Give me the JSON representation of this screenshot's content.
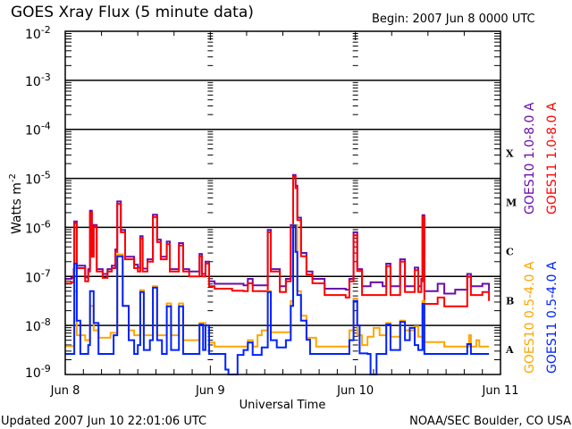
{
  "chart_data": {
    "type": "line",
    "title": "GOES Xray Flux (5 minute data)",
    "begin_label": "Begin:  2007 Jun 8 0000 UTC",
    "xlabel": "Universal Time",
    "ylabel": "Watts m",
    "ylabel_sup": "-2",
    "y_scale": "log",
    "ylim_log10": [
      -9,
      -2
    ],
    "xlim_hours": [
      0,
      72
    ],
    "x_ticks": [
      {
        "hour": 0,
        "label": "Jun 8"
      },
      {
        "hour": 24,
        "label": "Jun 9"
      },
      {
        "hour": 48,
        "label": "Jun 10"
      },
      {
        "hour": 72,
        "label": "Jun 11"
      }
    ],
    "y_ticks": [
      {
        "exp": -2,
        "base": "10",
        "sup": "-2"
      },
      {
        "exp": -3,
        "base": "10",
        "sup": "-3"
      },
      {
        "exp": -4,
        "base": "10",
        "sup": "-4"
      },
      {
        "exp": -5,
        "base": "10",
        "sup": "-5"
      },
      {
        "exp": -6,
        "base": "10",
        "sup": "-6"
      },
      {
        "exp": -7,
        "base": "10",
        "sup": "-7"
      },
      {
        "exp": -8,
        "base": "10",
        "sup": "-8"
      },
      {
        "exp": -9,
        "base": "10",
        "sup": "-9"
      }
    ],
    "flare_classes": [
      {
        "label": "X",
        "exp": -4
      },
      {
        "label": "M",
        "exp": -5
      },
      {
        "label": "C",
        "exp": -6
      },
      {
        "label": "B",
        "exp": -7
      },
      {
        "label": "A",
        "exp": -8
      }
    ],
    "gridlines_log10": [
      -3,
      -4,
      -5,
      -6,
      -7,
      -8
    ],
    "series": [
      {
        "name": "GOES10 1.0-8.0 A",
        "color": "#6a0dad",
        "points_hour_log10flux": [
          [
            0,
            -7.05
          ],
          [
            1.0,
            -7.03
          ],
          [
            1.4,
            -6.85
          ],
          [
            1.5,
            -5.88
          ],
          [
            1.9,
            -6.78
          ],
          [
            3.3,
            -7.02
          ],
          [
            3.8,
            -6.85
          ],
          [
            4.1,
            -5.66
          ],
          [
            4.4,
            -6.55
          ],
          [
            4.7,
            -5.95
          ],
          [
            5.2,
            -6.85
          ],
          [
            6.2,
            -6.95
          ],
          [
            7.0,
            -6.85
          ],
          [
            7.7,
            -6.78
          ],
          [
            8.3,
            -6.45
          ],
          [
            8.6,
            -5.47
          ],
          [
            9.2,
            -6.05
          ],
          [
            9.9,
            -6.6
          ],
          [
            11.4,
            -6.76
          ],
          [
            12.0,
            -6.82
          ],
          [
            12.4,
            -6.18
          ],
          [
            12.8,
            -6.84
          ],
          [
            13.6,
            -6.65
          ],
          [
            14.5,
            -5.74
          ],
          [
            15.2,
            -6.25
          ],
          [
            15.8,
            -6.6
          ],
          [
            16.8,
            -6.29
          ],
          [
            17.3,
            -6.85
          ],
          [
            18.8,
            -6.32
          ],
          [
            19.5,
            -6.85
          ],
          [
            20.5,
            -6.9
          ],
          [
            22.2,
            -6.54
          ],
          [
            22.6,
            -6.95
          ],
          [
            23.2,
            -6.7
          ],
          [
            23.8,
            -7.1
          ],
          [
            24.7,
            -7.15
          ],
          [
            27.6,
            -7.15
          ],
          [
            29.5,
            -7.18
          ],
          [
            30.2,
            -7.05
          ],
          [
            31,
            -7.18
          ],
          [
            33.0,
            -7.18
          ],
          [
            33.5,
            -6.05
          ],
          [
            34.0,
            -6.85
          ],
          [
            35.5,
            -7.2
          ],
          [
            36.5,
            -7.05
          ],
          [
            37.3,
            -5.95
          ],
          [
            37.7,
            -4.93
          ],
          [
            38.1,
            -5.15
          ],
          [
            38.4,
            -5.8
          ],
          [
            39.0,
            -6.52
          ],
          [
            39.9,
            -6.9
          ],
          [
            40.9,
            -7.05
          ],
          [
            42.9,
            -7.25
          ],
          [
            46.4,
            -7.27
          ],
          [
            47.0,
            -7.05
          ],
          [
            47.7,
            -6.1
          ],
          [
            48.3,
            -6.85
          ],
          [
            49.1,
            -7.2
          ],
          [
            50.5,
            -7.12
          ],
          [
            52.5,
            -7.2
          ],
          [
            53.1,
            -6.74
          ],
          [
            53.8,
            -7.2
          ],
          [
            55.4,
            -6.65
          ],
          [
            56.2,
            -7.2
          ],
          [
            57.8,
            -6.82
          ],
          [
            58.4,
            -7.2
          ],
          [
            58.9,
            -7.05
          ],
          [
            59.1,
            -5.75
          ],
          [
            59.4,
            -7.3
          ],
          [
            61.6,
            -7.15
          ],
          [
            62.7,
            -7.35
          ],
          [
            64.5,
            -7.27
          ],
          [
            65.6,
            -7.27
          ],
          [
            66.5,
            -6.95
          ],
          [
            67.1,
            -7.2
          ],
          [
            69.0,
            -7.15
          ],
          [
            70.1,
            -7.3
          ]
        ]
      },
      {
        "name": "GOES11 1.0-8.0 A",
        "color": "#ff0000",
        "points_hour_log10flux": [
          [
            0,
            -7.14
          ],
          [
            1.0,
            -7.12
          ],
          [
            1.4,
            -6.9
          ],
          [
            1.5,
            -5.92
          ],
          [
            1.9,
            -6.83
          ],
          [
            3.3,
            -7.1
          ],
          [
            3.8,
            -6.9
          ],
          [
            4.1,
            -5.7
          ],
          [
            4.4,
            -6.6
          ],
          [
            4.7,
            -5.99
          ],
          [
            5.2,
            -6.9
          ],
          [
            6.2,
            -7.03
          ],
          [
            7.0,
            -6.9
          ],
          [
            7.7,
            -6.83
          ],
          [
            8.3,
            -6.5
          ],
          [
            8.6,
            -5.52
          ],
          [
            9.2,
            -6.1
          ],
          [
            9.9,
            -6.65
          ],
          [
            11.4,
            -6.83
          ],
          [
            12.0,
            -6.9
          ],
          [
            12.4,
            -6.23
          ],
          [
            12.8,
            -6.9
          ],
          [
            13.6,
            -6.7
          ],
          [
            14.5,
            -5.79
          ],
          [
            15.2,
            -6.3
          ],
          [
            15.8,
            -6.65
          ],
          [
            16.8,
            -6.34
          ],
          [
            17.3,
            -6.9
          ],
          [
            18.8,
            -6.37
          ],
          [
            19.5,
            -6.9
          ],
          [
            20.5,
            -7.0
          ],
          [
            22.2,
            -6.59
          ],
          [
            22.6,
            -7.0
          ],
          [
            23.2,
            -6.74
          ],
          [
            23.8,
            -7.2
          ],
          [
            24.7,
            -7.25
          ],
          [
            27.6,
            -7.29
          ],
          [
            29.5,
            -7.3
          ],
          [
            30.2,
            -7.14
          ],
          [
            31,
            -7.3
          ],
          [
            33.0,
            -7.3
          ],
          [
            33.5,
            -6.1
          ],
          [
            34.0,
            -6.9
          ],
          [
            35.5,
            -7.32
          ],
          [
            36.5,
            -7.1
          ],
          [
            37.3,
            -6.0
          ],
          [
            37.7,
            -4.97
          ],
          [
            38.1,
            -5.2
          ],
          [
            38.4,
            -5.85
          ],
          [
            39.0,
            -6.59
          ],
          [
            39.9,
            -6.96
          ],
          [
            40.9,
            -7.14
          ],
          [
            42.9,
            -7.38
          ],
          [
            46.4,
            -7.43
          ],
          [
            47.0,
            -7.1
          ],
          [
            47.7,
            -6.16
          ],
          [
            48.3,
            -6.89
          ],
          [
            49.1,
            -7.38
          ],
          [
            52.5,
            -7.38
          ],
          [
            53.1,
            -6.79
          ],
          [
            53.8,
            -7.38
          ],
          [
            55.4,
            -6.7
          ],
          [
            56.2,
            -7.32
          ],
          [
            57.8,
            -6.87
          ],
          [
            58.4,
            -7.32
          ],
          [
            58.9,
            -7.1
          ],
          [
            59.1,
            -5.79
          ],
          [
            59.4,
            -7.56
          ],
          [
            61.6,
            -7.43
          ],
          [
            62.7,
            -7.61
          ],
          [
            65.6,
            -7.61
          ],
          [
            66.5,
            -7.01
          ],
          [
            67.1,
            -7.38
          ],
          [
            69.0,
            -7.32
          ],
          [
            70.1,
            -7.5
          ]
        ]
      },
      {
        "name": "GOES10 0.5-4.0 A",
        "color": "#ffa500",
        "points_hour_log10flux": [
          [
            0,
            -8.42
          ],
          [
            1.4,
            -8.42
          ],
          [
            1.5,
            -7.3
          ],
          [
            1.9,
            -8.2
          ],
          [
            3.3,
            -8.3
          ],
          [
            4.1,
            -7.6
          ],
          [
            4.7,
            -8.1
          ],
          [
            5.5,
            -8.25
          ],
          [
            7.5,
            -8.15
          ],
          [
            8.6,
            -6.55
          ],
          [
            9.5,
            -7.6
          ],
          [
            10.5,
            -8.1
          ],
          [
            11.4,
            -8.2
          ],
          [
            12.4,
            -7.28
          ],
          [
            13.0,
            -8.2
          ],
          [
            14.5,
            -7.2
          ],
          [
            15.2,
            -8.2
          ],
          [
            16.8,
            -7.55
          ],
          [
            17.5,
            -8.2
          ],
          [
            18.8,
            -7.55
          ],
          [
            19.5,
            -8.3
          ],
          [
            22.2,
            -7.95
          ],
          [
            23.2,
            -8.0
          ],
          [
            23.8,
            -8.35
          ],
          [
            24.7,
            -8.43
          ],
          [
            29.5,
            -8.43
          ],
          [
            30.2,
            -8.3
          ],
          [
            31,
            -8.43
          ],
          [
            31.8,
            -8.2
          ],
          [
            32.5,
            -8.1
          ],
          [
            33.5,
            -7.3
          ],
          [
            34.0,
            -8.14
          ],
          [
            36.5,
            -8.14
          ],
          [
            37.3,
            -7.5
          ],
          [
            37.7,
            -5.95
          ],
          [
            38.4,
            -7.3
          ],
          [
            39.0,
            -7.8
          ],
          [
            39.9,
            -8.25
          ],
          [
            40.9,
            -8.25
          ],
          [
            41.5,
            -8.43
          ],
          [
            46.4,
            -8.43
          ],
          [
            47.0,
            -8.1
          ],
          [
            47.7,
            -7.45
          ],
          [
            48.3,
            -8.2
          ],
          [
            49.1,
            -8.4
          ],
          [
            50.0,
            -8.23
          ],
          [
            51.0,
            -8.05
          ],
          [
            52.0,
            -8.2
          ],
          [
            53.1,
            -7.95
          ],
          [
            53.8,
            -8.23
          ],
          [
            55.4,
            -7.9
          ],
          [
            56.2,
            -8.1
          ],
          [
            57.8,
            -8.02
          ],
          [
            58.4,
            -8.23
          ],
          [
            59.1,
            -7.5
          ],
          [
            59.4,
            -8.34
          ],
          [
            61.6,
            -8.34
          ],
          [
            62.7,
            -8.43
          ],
          [
            66.5,
            -8.43
          ],
          [
            66.8,
            -8.2
          ],
          [
            67.1,
            -8.43
          ],
          [
            68.0,
            -8.3
          ],
          [
            68.5,
            -8.43
          ],
          [
            70.1,
            -8.43
          ]
        ]
      },
      {
        "name": "GOES11 0.5-4.0 A",
        "color": "#0022ff",
        "points_hour_log10flux": [
          [
            0,
            -8.58
          ],
          [
            1.4,
            -8.58
          ],
          [
            1.5,
            -6.74
          ],
          [
            1.9,
            -7.9
          ],
          [
            2.5,
            -8.58
          ],
          [
            3.3,
            -8.58
          ],
          [
            3.8,
            -8.4
          ],
          [
            4.1,
            -7.3
          ],
          [
            4.7,
            -7.95
          ],
          [
            5.5,
            -8.58
          ],
          [
            7.5,
            -8.58
          ],
          [
            8.0,
            -8.2
          ],
          [
            8.6,
            -6.59
          ],
          [
            9.5,
            -7.6
          ],
          [
            10.5,
            -8.3
          ],
          [
            11.4,
            -8.58
          ],
          [
            12.0,
            -8.4
          ],
          [
            12.4,
            -7.32
          ],
          [
            13.0,
            -8.5
          ],
          [
            14.0,
            -8.3
          ],
          [
            14.5,
            -7.23
          ],
          [
            15.2,
            -8.3
          ],
          [
            16.0,
            -8.58
          ],
          [
            16.8,
            -7.61
          ],
          [
            17.5,
            -8.5
          ],
          [
            18.8,
            -7.61
          ],
          [
            19.5,
            -8.58
          ],
          [
            22.2,
            -7.98
          ],
          [
            22.8,
            -8.5
          ],
          [
            23.2,
            -8.0
          ],
          [
            23.8,
            -8.58
          ],
          [
            26.0,
            -8.58
          ],
          [
            26.5,
            -8.9
          ],
          [
            27.0,
            -9.1
          ],
          [
            28.0,
            -9.1
          ],
          [
            28.5,
            -8.6
          ],
          [
            29.5,
            -8.5
          ],
          [
            30.2,
            -8.35
          ],
          [
            31,
            -8.6
          ],
          [
            32.5,
            -8.45
          ],
          [
            33.5,
            -7.32
          ],
          [
            34.0,
            -8.3
          ],
          [
            35.0,
            -8.45
          ],
          [
            36.5,
            -8.3
          ],
          [
            37.3,
            -7.6
          ],
          [
            37.7,
            -5.96
          ],
          [
            38.1,
            -6.5
          ],
          [
            38.4,
            -7.38
          ],
          [
            39.0,
            -7.9
          ],
          [
            39.9,
            -8.29
          ],
          [
            40.5,
            -8.58
          ],
          [
            46.4,
            -8.58
          ],
          [
            47.0,
            -8.3
          ],
          [
            47.7,
            -7.5
          ],
          [
            48.3,
            -8.0
          ],
          [
            48.7,
            -8.57
          ],
          [
            50.0,
            -8.58
          ],
          [
            50.5,
            -9.0
          ],
          [
            51.0,
            -9.05
          ],
          [
            51.5,
            -8.58
          ],
          [
            53.1,
            -7.98
          ],
          [
            53.8,
            -8.5
          ],
          [
            55.4,
            -7.93
          ],
          [
            56.2,
            -8.3
          ],
          [
            57.0,
            -8.05
          ],
          [
            57.8,
            -8.4
          ],
          [
            58.4,
            -8.5
          ],
          [
            59.1,
            -7.56
          ],
          [
            59.4,
            -8.58
          ],
          [
            66.0,
            -8.58
          ],
          [
            66.5,
            -8.38
          ],
          [
            67.1,
            -8.58
          ],
          [
            70.1,
            -8.58
          ]
        ]
      }
    ]
  },
  "footer": {
    "updated": "Updated 2007 Jun 10 22:01:06 UTC",
    "credit": "NOAA/SEC Boulder, CO USA"
  }
}
